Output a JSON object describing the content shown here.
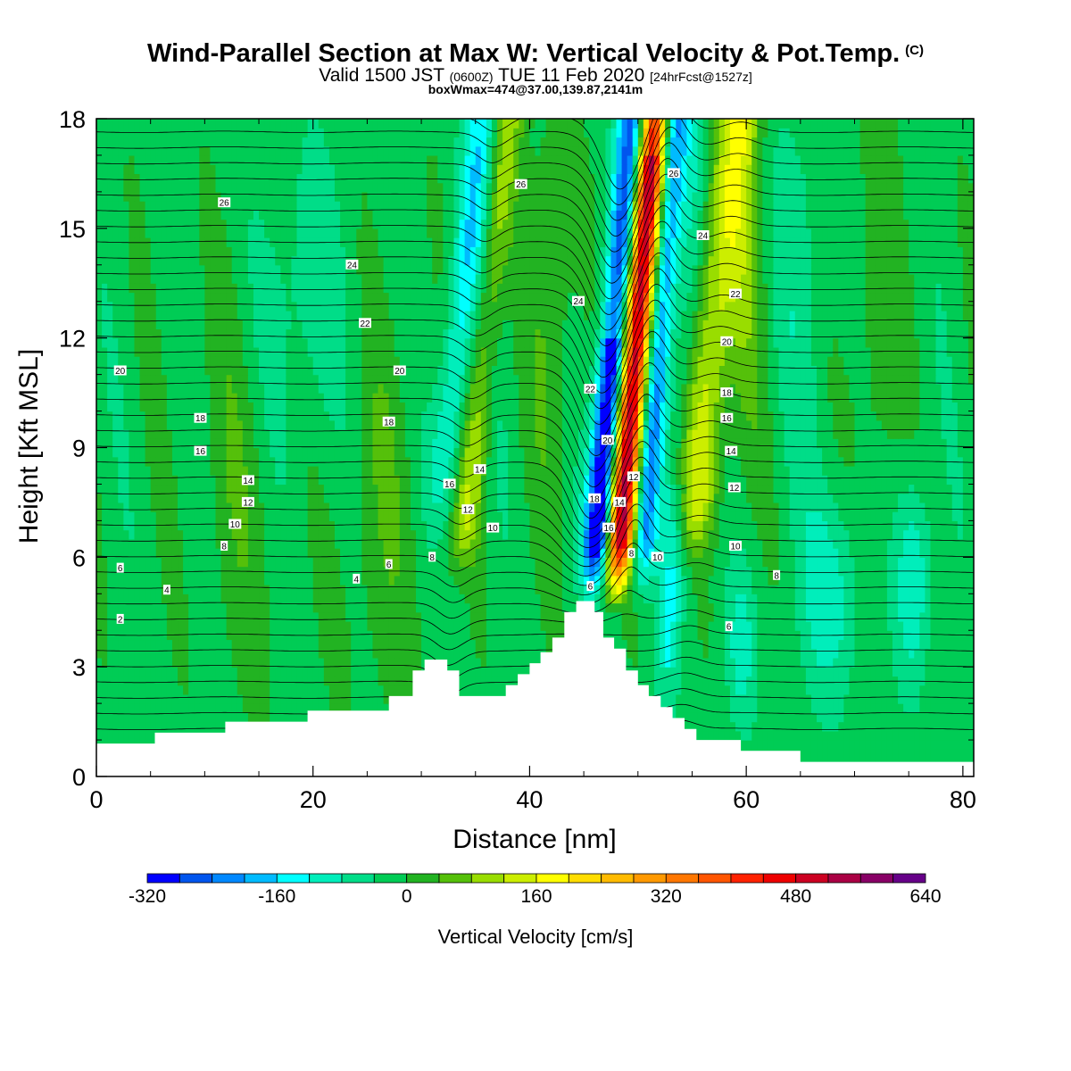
{
  "header": {
    "title_main": "Wind-Parallel Section at Max W: Vertical Velocity & Pot.Temp.",
    "title_badge": "(C)",
    "valid_prefix": "Valid 1500 JST",
    "valid_utc": "(0600Z)",
    "valid_date": "TUE 11 Feb 2020",
    "valid_fcst": "[24hrFcst@1527z]",
    "box_info": "boxWmax=474@37.00,139.87,2141m"
  },
  "chart_data": {
    "type": "heatmap",
    "xlabel": "Distance [nm]",
    "ylabel": "Height [Kft MSL]",
    "xlim": [
      0,
      81
    ],
    "ylim": [
      0,
      18
    ],
    "x_ticks": [
      0,
      20,
      40,
      60,
      80
    ],
    "y_ticks": [
      0,
      3,
      6,
      9,
      12,
      15,
      18
    ],
    "colorbar": {
      "label": "Vertical Velocity [cm/s]",
      "tick_values": [
        -320,
        -160,
        0,
        160,
        320,
        480,
        640
      ],
      "tick_labels": [
        "-320",
        "-160",
        "0",
        "160",
        "320",
        "480",
        "640"
      ],
      "levels": [
        -320,
        -280,
        -240,
        -200,
        -160,
        -120,
        -80,
        -40,
        0,
        40,
        80,
        120,
        160,
        200,
        240,
        280,
        320,
        360,
        400,
        440,
        480,
        520,
        560,
        600,
        640
      ],
      "colors": [
        "#0000ff",
        "#0055ee",
        "#0088ff",
        "#00bbff",
        "#00ffff",
        "#00eebb",
        "#00dd88",
        "#00cc55",
        "#22b322",
        "#55c00a",
        "#99dd00",
        "#ccee00",
        "#ffff00",
        "#ffdd00",
        "#ffbb00",
        "#ff9900",
        "#ff7700",
        "#ff5500",
        "#ff2200",
        "#ee0000",
        "#cc0022",
        "#aa0044",
        "#880066",
        "#660088"
      ]
    },
    "theta_labels": [
      {
        "x": 2.2,
        "y": 4.3,
        "text": "2"
      },
      {
        "x": 2.2,
        "y": 5.7,
        "text": "6"
      },
      {
        "x": 6.5,
        "y": 5.1,
        "text": "4"
      },
      {
        "x": 11.8,
        "y": 6.3,
        "text": "8"
      },
      {
        "x": 12.8,
        "y": 6.9,
        "text": "10"
      },
      {
        "x": 14.0,
        "y": 7.5,
        "text": "12"
      },
      {
        "x": 14.0,
        "y": 8.1,
        "text": "14"
      },
      {
        "x": 9.6,
        "y": 8.9,
        "text": "16"
      },
      {
        "x": 9.6,
        "y": 9.8,
        "text": "18"
      },
      {
        "x": 2.2,
        "y": 11.1,
        "text": "20"
      },
      {
        "x": 24.0,
        "y": 5.4,
        "text": "4"
      },
      {
        "x": 27.0,
        "y": 5.8,
        "text": "6"
      },
      {
        "x": 31.0,
        "y": 6.0,
        "text": "8"
      },
      {
        "x": 32.6,
        "y": 8.0,
        "text": "16"
      },
      {
        "x": 35.4,
        "y": 8.4,
        "text": "14"
      },
      {
        "x": 34.3,
        "y": 7.3,
        "text": "12"
      },
      {
        "x": 36.6,
        "y": 6.8,
        "text": "10"
      },
      {
        "x": 27.0,
        "y": 9.7,
        "text": "18"
      },
      {
        "x": 28.0,
        "y": 11.1,
        "text": "20"
      },
      {
        "x": 24.8,
        "y": 12.4,
        "text": "22"
      },
      {
        "x": 23.6,
        "y": 14.0,
        "text": "24"
      },
      {
        "x": 11.8,
        "y": 15.7,
        "text": "26"
      },
      {
        "x": 39.2,
        "y": 16.2,
        "text": "26"
      },
      {
        "x": 44.5,
        "y": 13.0,
        "text": "24"
      },
      {
        "x": 45.6,
        "y": 10.6,
        "text": "22"
      },
      {
        "x": 47.2,
        "y": 9.2,
        "text": "20"
      },
      {
        "x": 46.0,
        "y": 7.6,
        "text": "18"
      },
      {
        "x": 48.3,
        "y": 7.5,
        "text": "14"
      },
      {
        "x": 49.6,
        "y": 8.2,
        "text": "12"
      },
      {
        "x": 47.3,
        "y": 6.8,
        "text": "16"
      },
      {
        "x": 49.4,
        "y": 6.1,
        "text": "8"
      },
      {
        "x": 51.8,
        "y": 6.0,
        "text": "10"
      },
      {
        "x": 45.6,
        "y": 5.2,
        "text": "6"
      },
      {
        "x": 53.3,
        "y": 16.5,
        "text": "26"
      },
      {
        "x": 56.0,
        "y": 14.8,
        "text": "24"
      },
      {
        "x": 59.0,
        "y": 13.2,
        "text": "22"
      },
      {
        "x": 58.2,
        "y": 11.9,
        "text": "20"
      },
      {
        "x": 58.2,
        "y": 10.5,
        "text": "18"
      },
      {
        "x": 58.2,
        "y": 9.8,
        "text": "16"
      },
      {
        "x": 58.6,
        "y": 8.9,
        "text": "14"
      },
      {
        "x": 58.9,
        "y": 7.9,
        "text": "12"
      },
      {
        "x": 59.0,
        "y": 6.3,
        "text": "10"
      },
      {
        "x": 62.8,
        "y": 5.5,
        "text": "8"
      },
      {
        "x": 58.4,
        "y": 4.1,
        "text": "6"
      }
    ],
    "terrain": [
      [
        0,
        0.9
      ],
      [
        5.4,
        0.9
      ],
      [
        5.4,
        1.2
      ],
      [
        11.9,
        1.2
      ],
      [
        11.9,
        1.5
      ],
      [
        19.5,
        1.5
      ],
      [
        19.5,
        1.8
      ],
      [
        27.0,
        1.8
      ],
      [
        27.0,
        2.2
      ],
      [
        29.2,
        2.2
      ],
      [
        29.2,
        2.9
      ],
      [
        30.3,
        2.9
      ],
      [
        30.3,
        3.2
      ],
      [
        32.4,
        3.2
      ],
      [
        32.4,
        2.9
      ],
      [
        33.5,
        2.9
      ],
      [
        33.5,
        2.2
      ],
      [
        37.8,
        2.2
      ],
      [
        37.8,
        2.5
      ],
      [
        38.9,
        2.5
      ],
      [
        38.9,
        2.8
      ],
      [
        40.0,
        2.8
      ],
      [
        40.0,
        3.1
      ],
      [
        41.0,
        3.1
      ],
      [
        41.0,
        3.4
      ],
      [
        42.1,
        3.4
      ],
      [
        42.1,
        3.8
      ],
      [
        43.2,
        3.8
      ],
      [
        43.2,
        4.5
      ],
      [
        44.3,
        4.5
      ],
      [
        44.3,
        4.8
      ],
      [
        46.0,
        4.8
      ],
      [
        46.0,
        4.5
      ],
      [
        46.8,
        4.5
      ],
      [
        46.8,
        3.8
      ],
      [
        47.8,
        3.8
      ],
      [
        47.8,
        3.5
      ],
      [
        48.9,
        3.5
      ],
      [
        48.9,
        2.9
      ],
      [
        50.0,
        2.9
      ],
      [
        50.0,
        2.5
      ],
      [
        51.0,
        2.5
      ],
      [
        51.0,
        2.2
      ],
      [
        52.1,
        2.2
      ],
      [
        52.1,
        1.9
      ],
      [
        53.2,
        1.9
      ],
      [
        53.2,
        1.6
      ],
      [
        54.3,
        1.6
      ],
      [
        54.3,
        1.3
      ],
      [
        55.4,
        1.3
      ],
      [
        55.4,
        1.0
      ],
      [
        59.5,
        1.0
      ],
      [
        59.5,
        0.7
      ],
      [
        65.0,
        0.7
      ],
      [
        65.0,
        0.4
      ],
      [
        81,
        0.4
      ]
    ]
  }
}
